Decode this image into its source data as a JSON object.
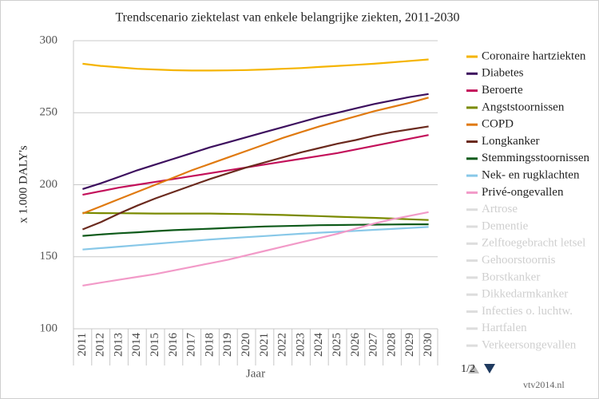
{
  "chart_data": {
    "type": "line",
    "title": "Trendscenario ziektelast van enkele belangrijke ziekten, 2011-2030",
    "x_label": "Jaar",
    "y_label": "x 1.000 DALY's",
    "categories": [
      "2011",
      "2012",
      "2013",
      "2014",
      "2015",
      "2016",
      "2017",
      "2018",
      "2019",
      "2020",
      "2021",
      "2022",
      "2023",
      "2024",
      "2025",
      "2026",
      "2027",
      "2028",
      "2029",
      "2030"
    ],
    "ylim": [
      100,
      300
    ],
    "yticks": [
      100,
      150,
      200,
      250,
      300
    ],
    "grid": true,
    "series": [
      {
        "name": "Coronaire hartziekten",
        "color": "#f5b400",
        "values": [
          284,
          282.5,
          281.5,
          280.5,
          280,
          279.5,
          279.3,
          279.3,
          279.4,
          279.6,
          280,
          280.5,
          281,
          281.8,
          282.5,
          283.2,
          284,
          285,
          286,
          287
        ]
      },
      {
        "name": "Diabetes",
        "color": "#3d0f5e",
        "values": [
          197,
          201,
          205.5,
          210,
          214,
          218,
          222,
          226,
          229.5,
          233,
          236.5,
          240,
          243.5,
          247,
          250,
          253,
          256,
          258.5,
          261,
          263
        ]
      },
      {
        "name": "Beroerte",
        "color": "#c3105a",
        "values": [
          193,
          195.5,
          198,
          200,
          202,
          204,
          206,
          208,
          210,
          212,
          214,
          216,
          218,
          220,
          222,
          224.5,
          227,
          229.5,
          232,
          234.5
        ]
      },
      {
        "name": "Angststoornissen",
        "color": "#7a8a00",
        "values": [
          180.5,
          180.3,
          180.2,
          180.1,
          180,
          180,
          180,
          180,
          179.8,
          179.6,
          179.3,
          179,
          178.6,
          178.2,
          177.8,
          177.4,
          177,
          176.5,
          176,
          175.5
        ]
      },
      {
        "name": "COPD",
        "color": "#e07a10",
        "values": [
          180,
          185,
          190,
          195,
          200,
          205,
          210,
          214.5,
          219,
          223.5,
          228,
          232.5,
          236.5,
          240.5,
          244,
          247.5,
          251,
          254,
          257,
          260.5
        ]
      },
      {
        "name": "Longkanker",
        "color": "#6b2a1e",
        "values": [
          169,
          174,
          180,
          185.5,
          190.5,
          195,
          199.5,
          204,
          208,
          212,
          215.5,
          219,
          222.5,
          225.5,
          228.5,
          231,
          234,
          236.5,
          238.5,
          240.5
        ]
      },
      {
        "name": "Stemmingsstoornissen",
        "color": "#0e5a1a",
        "values": [
          164.5,
          165.5,
          166.3,
          167,
          167.8,
          168.5,
          169,
          169.5,
          170,
          170.5,
          171,
          171.3,
          171.6,
          171.9,
          172,
          172.2,
          172.3,
          172.4,
          172.5,
          172.5
        ]
      },
      {
        "name": "Nek- en rugklachten",
        "color": "#88c8e8",
        "values": [
          155,
          156,
          157,
          158,
          159,
          160,
          161,
          162,
          162.8,
          163.6,
          164.4,
          165.2,
          166,
          166.7,
          167.3,
          168,
          168.7,
          169.3,
          170,
          170.7
        ]
      },
      {
        "name": "Privé-ongevallen",
        "color": "#f29ac8",
        "values": [
          130,
          132,
          134,
          136,
          138,
          140.5,
          143,
          145.5,
          148,
          151,
          154,
          157,
          160,
          163,
          166,
          169.5,
          173,
          176,
          178.5,
          181
        ]
      }
    ],
    "legend_inactive": [
      "Artrose",
      "Dementie",
      "Zelftoegebracht letsel",
      "Gehoorstoornis",
      "Borstkanker",
      "Dikkedarmkanker",
      "Infecties o. luchtw.",
      "Hartfalen",
      "Verkeersongevallen"
    ],
    "legend_page": "1/2",
    "credit": "vtv2014.nl"
  }
}
